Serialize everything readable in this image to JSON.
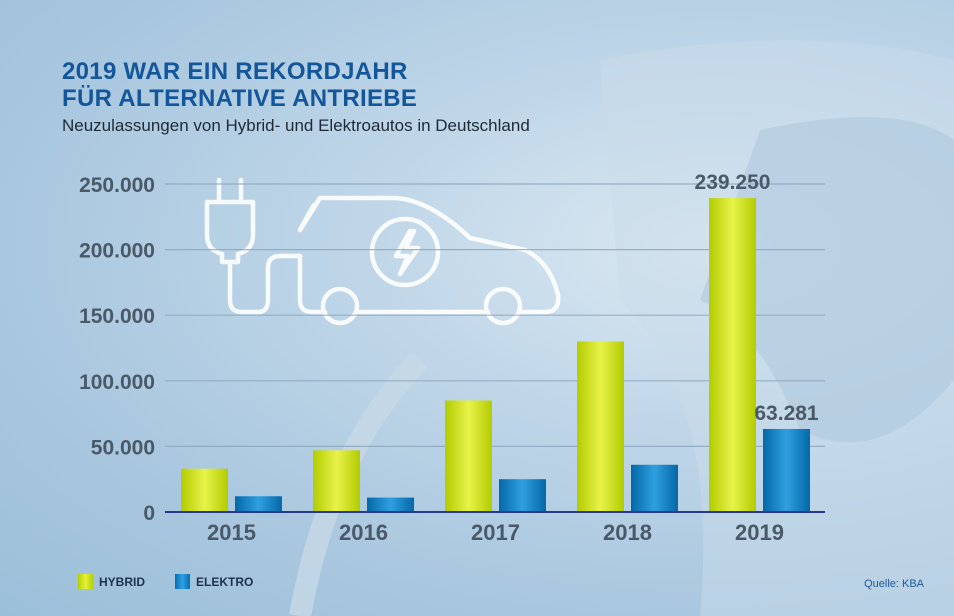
{
  "header": {
    "title_line1": "2019 WAR EIN REKORDJAHR",
    "title_line2": "FÜR ALTERNATIVE ANTRIEBE",
    "subtitle": "Neuzulassungen von Hybrid- und Elektroautos in Deutschland"
  },
  "legend": {
    "hybrid": "HYBRID",
    "elektro": "ELEKTRO"
  },
  "source": "Quelle: KBA",
  "colors": {
    "hybrid": "#c8dc10",
    "hybrid_light": "#eaf25a",
    "elektro": "#0a7cc4",
    "elektro_light": "#3aa6e6",
    "axis_text": "#4a5968",
    "baseline": "#2a3a8a",
    "title": "#14569a"
  },
  "chart_data": {
    "type": "bar",
    "title": "2019 WAR EIN REKORDJAHR FÜR ALTERNATIVE ANTRIEBE",
    "subtitle": "Neuzulassungen von Hybrid- und Elektroautos in Deutschland",
    "categories": [
      "2015",
      "2016",
      "2017",
      "2018",
      "2019"
    ],
    "series": [
      {
        "name": "HYBRID",
        "values": [
          33000,
          47000,
          85000,
          130000,
          239250
        ]
      },
      {
        "name": "ELEKTRO",
        "values": [
          12000,
          11000,
          25000,
          36000,
          63281
        ]
      }
    ],
    "ylim": [
      0,
      250000
    ],
    "yticks": [
      0,
      50000,
      100000,
      150000,
      200000,
      250000
    ],
    "ytick_labels": [
      "0",
      "50.000",
      "100.000",
      "150.000",
      "200.000",
      "250.000"
    ],
    "data_labels": [
      {
        "series": "HYBRID",
        "category": "2019",
        "text": "239.250"
      },
      {
        "series": "ELEKTRO",
        "category": "2019",
        "text": "63.281"
      }
    ],
    "grid": true,
    "legend_position": "bottom-left"
  }
}
